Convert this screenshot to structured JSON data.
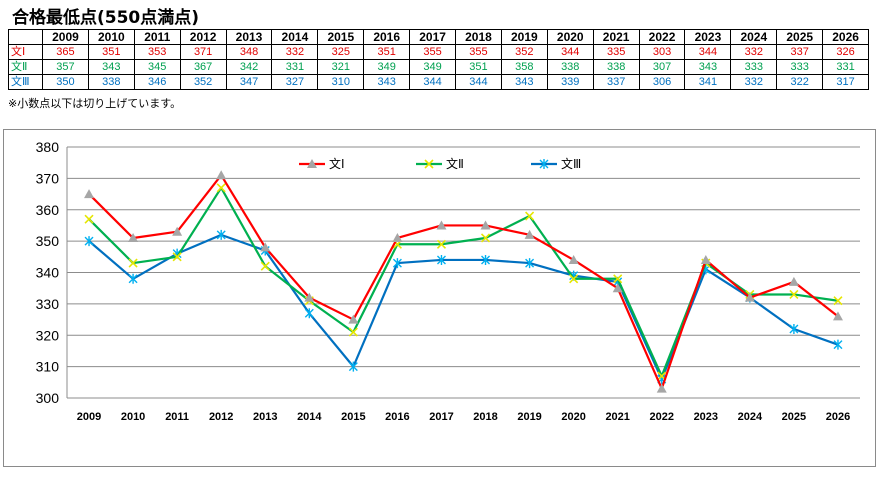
{
  "title": "合格最低点(550点満点)",
  "note": "※小数点以下は切り上げています。",
  "table": {
    "years": [
      "2009",
      "2010",
      "2011",
      "2012",
      "2013",
      "2014",
      "2015",
      "2016",
      "2017",
      "2018",
      "2019",
      "2020",
      "2021",
      "2022",
      "2023",
      "2024",
      "2025",
      "2026"
    ],
    "rows": [
      {
        "label": "文Ⅰ",
        "color": "#e00000",
        "values": [
          "365",
          "351",
          "353",
          "371",
          "348",
          "332",
          "325",
          "351",
          "355",
          "355",
          "352",
          "344",
          "335",
          "303",
          "344",
          "332",
          "337",
          "326"
        ]
      },
      {
        "label": "文Ⅱ",
        "color": "#00a050",
        "values": [
          "357",
          "343",
          "345",
          "367",
          "342",
          "331",
          "321",
          "349",
          "349",
          "351",
          "358",
          "338",
          "338",
          "307",
          "343",
          "333",
          "333",
          "331"
        ]
      },
      {
        "label": "文Ⅲ",
        "color": "#0070c0",
        "values": [
          "350",
          "338",
          "346",
          "352",
          "347",
          "327",
          "310",
          "343",
          "344",
          "344",
          "343",
          "339",
          "337",
          "306",
          "341",
          "332",
          "322",
          "317"
        ]
      }
    ]
  },
  "chart_data": {
    "type": "line",
    "title": "",
    "xlabel": "",
    "ylabel": "",
    "categories": [
      "2009",
      "2010",
      "2011",
      "2012",
      "2013",
      "2014",
      "2015",
      "2016",
      "2017",
      "2018",
      "2019",
      "2020",
      "2021",
      "2022",
      "2023",
      "2024",
      "2025",
      "2026"
    ],
    "ylim": [
      300,
      380
    ],
    "yticks": [
      300,
      310,
      320,
      330,
      340,
      350,
      360,
      370,
      380
    ],
    "grid": "horizontal",
    "legend": "top-center",
    "series": [
      {
        "name": "文Ⅰ",
        "color": "#ff0000",
        "marker": "triangle",
        "marker_color": "#a6a6a6",
        "values": [
          365,
          351,
          353,
          371,
          348,
          332,
          325,
          351,
          355,
          355,
          352,
          344,
          335,
          303,
          344,
          332,
          337,
          326
        ]
      },
      {
        "name": "文Ⅱ",
        "color": "#00b050",
        "marker": "x",
        "marker_color": "#e6e600",
        "values": [
          357,
          343,
          345,
          367,
          342,
          331,
          321,
          349,
          349,
          351,
          358,
          338,
          338,
          307,
          343,
          333,
          333,
          331
        ]
      },
      {
        "name": "文Ⅲ",
        "color": "#0070c0",
        "marker": "star",
        "marker_color": "#00b0f0",
        "values": [
          350,
          338,
          346,
          352,
          347,
          327,
          310,
          343,
          344,
          344,
          343,
          339,
          337,
          306,
          341,
          332,
          322,
          317
        ]
      }
    ]
  }
}
